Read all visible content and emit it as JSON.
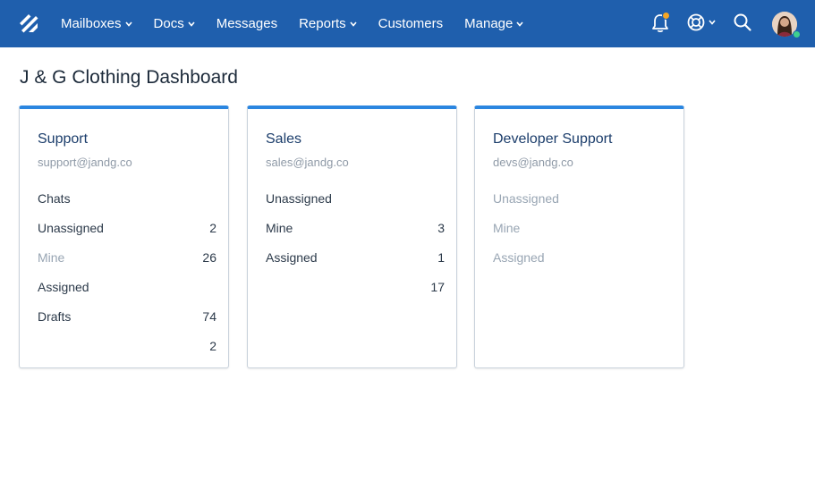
{
  "nav": {
    "items": [
      {
        "label": "Mailboxes",
        "dropdown": true
      },
      {
        "label": "Docs",
        "dropdown": true
      },
      {
        "label": "Messages",
        "dropdown": false
      },
      {
        "label": "Reports",
        "dropdown": true
      },
      {
        "label": "Customers",
        "dropdown": false
      },
      {
        "label": "Manage",
        "dropdown": true
      }
    ],
    "icons": [
      "helpscout-logo-icon",
      "bell-icon",
      "lifebuoy-icon",
      "search-icon",
      "avatar"
    ],
    "colors": {
      "bar": "#1f5fad",
      "notification_badge": "#f6a623",
      "status_online": "#3ecf8e"
    }
  },
  "page": {
    "title": "J & G Clothing Dashboard"
  },
  "cards": [
    {
      "name": "Support",
      "email": "support@jandg.co",
      "rows": [
        {
          "label": "Chats",
          "count": "",
          "muted": false
        },
        {
          "label": "Unassigned",
          "count": "2",
          "muted": false
        },
        {
          "label": "Mine",
          "count": "26",
          "muted": true
        },
        {
          "label": "Assigned",
          "count": "",
          "muted": false
        },
        {
          "label": "Drafts",
          "count": "74",
          "muted": false
        },
        {
          "label": "",
          "count": "2",
          "muted": false
        }
      ]
    },
    {
      "name": "Sales",
      "email": "sales@jandg.co",
      "rows": [
        {
          "label": "Unassigned",
          "count": "",
          "muted": false
        },
        {
          "label": "Mine",
          "count": "3",
          "muted": false
        },
        {
          "label": "Assigned",
          "count": "1",
          "muted": false
        },
        {
          "label": "",
          "count": "17",
          "muted": false
        }
      ]
    },
    {
      "name": "Developer Support",
      "email": "devs@jandg.co",
      "rows": [
        {
          "label": "Unassigned",
          "count": "",
          "muted": true
        },
        {
          "label": "Mine",
          "count": "",
          "muted": true
        },
        {
          "label": "Assigned",
          "count": "",
          "muted": true
        }
      ]
    }
  ],
  "accent": "#2b86e0"
}
